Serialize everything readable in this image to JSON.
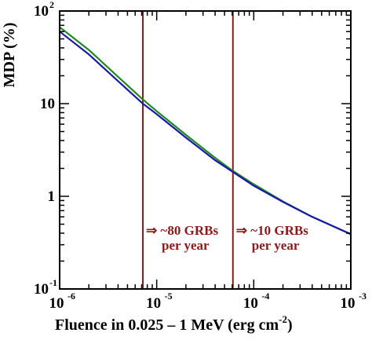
{
  "chart_data": {
    "type": "line",
    "xlabel": "Fluence in 0.025 – 1 MeV (erg cm",
    "xlabel_exp": "-2",
    "xlabel_end": ")",
    "ylabel": "MDP (%)",
    "xscale": "log",
    "yscale": "log",
    "xlim": [
      1e-06,
      0.001
    ],
    "ylim": [
      0.1,
      100
    ],
    "x_ticks": [
      {
        "base": "10",
        "exp": "-6"
      },
      {
        "base": "10",
        "exp": "-5"
      },
      {
        "base": "10",
        "exp": "-4"
      },
      {
        "base": "10",
        "exp": "-3"
      }
    ],
    "y_ticks": [
      {
        "base": "10",
        "exp": "-1"
      },
      {
        "base": "1",
        "exp": ""
      },
      {
        "base": "10",
        "exp": ""
      },
      {
        "base": "10",
        "exp": "2"
      }
    ],
    "series": [
      {
        "color": "#1f8a1f",
        "x": [
          1e-06,
          2e-06,
          4e-06,
          7.2e-06,
          1e-05,
          2e-05,
          4e-05,
          6e-05,
          0.0001,
          0.0002,
          0.0004,
          0.001
        ],
        "y": [
          67,
          38,
          19.5,
          11.1,
          8.3,
          4.6,
          2.6,
          1.9,
          1.35,
          0.88,
          0.6,
          0.39
        ]
      },
      {
        "color": "#1a1aa6",
        "x": [
          1e-06,
          2e-06,
          4e-06,
          7.2e-06,
          1e-05,
          2e-05,
          4e-05,
          6e-05,
          0.0001,
          0.0002,
          0.0004,
          0.001
        ],
        "y": [
          60,
          34,
          17.5,
          10.0,
          7.7,
          4.3,
          2.45,
          1.85,
          1.3,
          0.87,
          0.6,
          0.39
        ]
      }
    ],
    "vlines": [
      {
        "x": 7.2e-06,
        "color": "#8b1a1a"
      },
      {
        "x": 6.1e-05,
        "color": "#8b1a1a"
      }
    ],
    "annotations": [
      {
        "line1": "⇒ ~80 GRBs",
        "line2": "per year"
      },
      {
        "line1": "⇒ ~10 GRBs",
        "line2": "per year"
      }
    ],
    "grid": false
  }
}
